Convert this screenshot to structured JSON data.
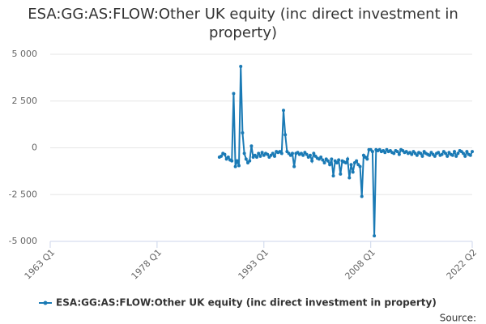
{
  "chart_data": {
    "type": "line",
    "title": "ESA:GG:AS:FLOW:Other UK equity (inc direct investment in property)",
    "source": "Source:",
    "categories": [
      "1963 Q1",
      null,
      null,
      null,
      null,
      null,
      null,
      null,
      null,
      null,
      null,
      null,
      null,
      null,
      null,
      null,
      null,
      null,
      null,
      null,
      null,
      null,
      null,
      null,
      null,
      null,
      null,
      null,
      null,
      null,
      null,
      null,
      null,
      null,
      null,
      null,
      null,
      null,
      null,
      null,
      null,
      null,
      null,
      null,
      null,
      null,
      null,
      null,
      null,
      null,
      null,
      null,
      null,
      null,
      null,
      null,
      null,
      null,
      null,
      null,
      "1978 Q1",
      null,
      null,
      null,
      null,
      null,
      null,
      null,
      null,
      null,
      null,
      null,
      null,
      null,
      null,
      null,
      null,
      null,
      null,
      null,
      null,
      null,
      null,
      null,
      null,
      null,
      null,
      null,
      null,
      null,
      null,
      null,
      null,
      null,
      null,
      null,
      null,
      null,
      null,
      null,
      null,
      null,
      null,
      null,
      null,
      null,
      null,
      null,
      null,
      null,
      null,
      null,
      null,
      null,
      null,
      null,
      null,
      null,
      null,
      null,
      "1993 Q1",
      null,
      null,
      null,
      null,
      null,
      null,
      null,
      null,
      null,
      null,
      null,
      null,
      null,
      null,
      null,
      null,
      null,
      null,
      null,
      null,
      null,
      null,
      null,
      null,
      null,
      null,
      null,
      null,
      null,
      null,
      null,
      null,
      null,
      null,
      null,
      null,
      null,
      null,
      null,
      null,
      null,
      null,
      null,
      null,
      null,
      null,
      null,
      null,
      null,
      null,
      null,
      null,
      null,
      null,
      null,
      null,
      null,
      null,
      null,
      "2008 Q1",
      null,
      null,
      null,
      null,
      null,
      null,
      null,
      null,
      null,
      null,
      null,
      null,
      null,
      null,
      null,
      null,
      null,
      null,
      null,
      null,
      null,
      null,
      null,
      null,
      null,
      null,
      null,
      null,
      null,
      null,
      null,
      null,
      null,
      null,
      null,
      null,
      null,
      null,
      null,
      null,
      null,
      null,
      null,
      null,
      null,
      null,
      null,
      null,
      null,
      null,
      null,
      null,
      null,
      null,
      null,
      null,
      "2022 Q2"
    ],
    "series": [
      {
        "name": "ESA:GG:AS:FLOW:Other UK equity (inc direct investment in property)",
        "color": "#1a7ab5",
        "values": [
          null,
          null,
          null,
          null,
          null,
          null,
          null,
          null,
          null,
          null,
          null,
          null,
          null,
          null,
          null,
          null,
          null,
          null,
          null,
          null,
          null,
          null,
          null,
          null,
          null,
          null,
          null,
          null,
          null,
          null,
          null,
          null,
          null,
          null,
          null,
          null,
          null,
          null,
          null,
          null,
          null,
          null,
          null,
          null,
          null,
          null,
          null,
          null,
          null,
          null,
          null,
          null,
          null,
          null,
          null,
          null,
          null,
          null,
          null,
          null,
          null,
          null,
          null,
          null,
          null,
          null,
          null,
          null,
          null,
          null,
          null,
          null,
          null,
          null,
          null,
          null,
          null,
          null,
          null,
          null,
          null,
          null,
          null,
          null,
          null,
          null,
          null,
          null,
          null,
          null,
          null,
          null,
          null,
          null,
          null,
          -500,
          -450,
          -300,
          -350,
          -600,
          -500,
          -650,
          -700,
          2900,
          -1000,
          -700,
          -950,
          4350,
          800,
          -300,
          -600,
          -800,
          -700,
          100,
          -500,
          -400,
          -500,
          -300,
          -450,
          -250,
          -400,
          -300,
          -350,
          -500,
          -400,
          -300,
          -450,
          -200,
          -250,
          -200,
          -300,
          2000,
          700,
          -200,
          -300,
          -400,
          -300,
          -1000,
          -300,
          -250,
          -350,
          -300,
          -400,
          -250,
          -350,
          -500,
          -400,
          -700,
          -300,
          -450,
          -550,
          -600,
          -500,
          -650,
          -800,
          -600,
          -700,
          -900,
          -600,
          -1500,
          -700,
          -800,
          -650,
          -1400,
          -700,
          -750,
          -800,
          -600,
          -1600,
          -900,
          -1300,
          -800,
          -700,
          -900,
          -1000,
          -2600,
          -400,
          -500,
          -600,
          -100,
          -100,
          -200,
          -4700,
          -100,
          -150,
          -100,
          -200,
          -150,
          -250,
          -100,
          -200,
          -150,
          -250,
          -300,
          -150,
          -200,
          -350,
          -100,
          -150,
          -250,
          -200,
          -300,
          -250,
          -350,
          -200,
          -300,
          -400,
          -250,
          -300,
          -450,
          -200,
          -300,
          -350,
          -400,
          -250,
          -350,
          -450,
          -300,
          -250,
          -400,
          -350,
          -200,
          -300,
          -450,
          -250,
          -350,
          -400,
          -200,
          -450,
          -300,
          -150,
          -200,
          -300,
          -450,
          -200,
          -350,
          -400,
          -200
        ]
      }
    ],
    "ylim": [
      -5000,
      5000
    ],
    "yticks": [
      {
        "value": 5000,
        "label": "5 000"
      },
      {
        "value": 2500,
        "label": "2 500"
      },
      0,
      {
        "value": -2500,
        "label": "-2 500"
      },
      {
        "value": -5000,
        "label": "-5 000"
      }
    ],
    "grid": true
  }
}
